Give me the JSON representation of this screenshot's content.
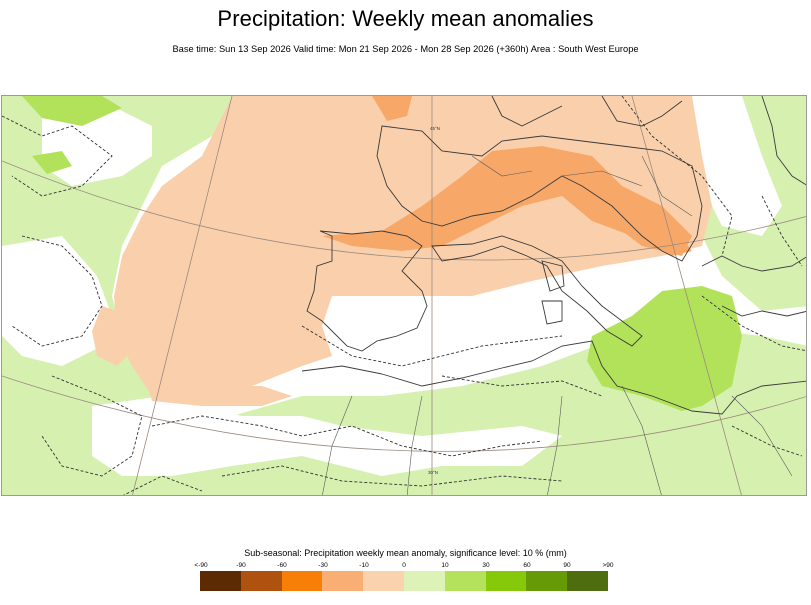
{
  "header": {
    "title": "Precipitation: Weekly mean anomalies",
    "subtitle": "Base time: Sun 13 Sep 2026 Valid time: Mon 21 Sep 2026 - Mon 28 Sep 2026 (+360h) Area : South West Europe"
  },
  "map": {
    "region": "South West Europe",
    "grid_labels": [
      "45°N",
      "30°N"
    ],
    "anomaly_colors": {
      "moderate_dry": "#fad0ac",
      "strong_dry": "#f7a869",
      "moderate_wet": "#d6f0b0",
      "strong_wet": "#b2e25a"
    }
  },
  "legend": {
    "title": "Sub-seasonal: Precipitation weekly mean anomaly, significance level: 10 % (mm)",
    "ticks": [
      "<-90",
      "-90",
      "-60",
      "-30",
      "-10",
      "0",
      "10",
      "30",
      "60",
      "90",
      ">90"
    ],
    "colors": [
      "#5c2b04",
      "#b0520f",
      "#f77e07",
      "#f9ae74",
      "#fad2ae",
      "#dcf2b6",
      "#b5e25c",
      "#86c90a",
      "#679a07",
      "#4d6d0e"
    ]
  }
}
